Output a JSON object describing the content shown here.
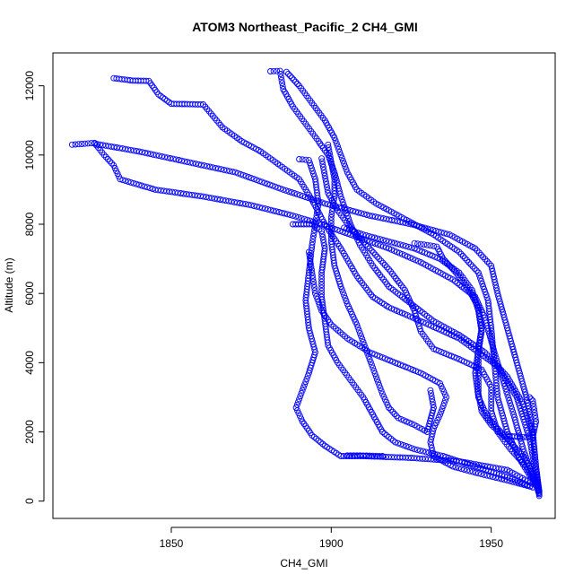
{
  "chart_data": {
    "type": "scatter",
    "title": "ATOM3 Northeast_Pacific_2 CH4_GMI",
    "xlabel": "CH4_GMI",
    "ylabel": "Altitude (m)",
    "xlim": [
      1813,
      1970
    ],
    "ylim": [
      -500,
      12950
    ],
    "xticks": [
      1850,
      1900,
      1950
    ],
    "yticks": [
      0,
      2000,
      4000,
      6000,
      8000,
      10000,
      12000
    ],
    "grid": false,
    "legend": "none",
    "marker": "open-circle",
    "color": "#0000ff",
    "series": [
      {
        "points": [
          [
            1832,
            12220
          ],
          [
            1838,
            12150
          ],
          [
            1843,
            12140
          ],
          [
            1846,
            11750
          ],
          [
            1850,
            11480
          ],
          [
            1855,
            11470
          ],
          [
            1860,
            11460
          ],
          [
            1866,
            10800
          ],
          [
            1872,
            10400
          ],
          [
            1878,
            10100
          ],
          [
            1884,
            9700
          ],
          [
            1890,
            9300
          ],
          [
            1894,
            8700
          ],
          [
            1898,
            8000
          ],
          [
            1903,
            7300
          ],
          [
            1908,
            6500
          ],
          [
            1913,
            5900
          ],
          [
            1918,
            5600
          ],
          [
            1928,
            5200
          ],
          [
            1940,
            4700
          ],
          [
            1952,
            3900
          ],
          [
            1958,
            3000
          ],
          [
            1962,
            1800
          ],
          [
            1964,
            800
          ],
          [
            1965,
            150
          ]
        ]
      },
      {
        "points": [
          [
            1819,
            10300
          ],
          [
            1822,
            10320
          ],
          [
            1826,
            10350
          ],
          [
            1829,
            10000
          ],
          [
            1832,
            9700
          ],
          [
            1834,
            9300
          ],
          [
            1845,
            9000
          ],
          [
            1860,
            8800
          ],
          [
            1875,
            8550
          ],
          [
            1888,
            8250
          ],
          [
            1897,
            8000
          ],
          [
            1906,
            7700
          ],
          [
            1918,
            7300
          ],
          [
            1928,
            6900
          ],
          [
            1938,
            6400
          ],
          [
            1945,
            5900
          ],
          [
            1948,
            5300
          ],
          [
            1951,
            4300
          ],
          [
            1954,
            3400
          ],
          [
            1957,
            2500
          ],
          [
            1960,
            1500
          ],
          [
            1963,
            700
          ],
          [
            1965,
            200
          ]
        ]
      },
      {
        "points": [
          [
            1826,
            10330
          ],
          [
            1840,
            10100
          ],
          [
            1855,
            9800
          ],
          [
            1870,
            9500
          ],
          [
            1885,
            9000
          ],
          [
            1898,
            8600
          ],
          [
            1912,
            8250
          ],
          [
            1925,
            8000
          ],
          [
            1937,
            7700
          ],
          [
            1945,
            7300
          ],
          [
            1950,
            6800
          ],
          [
            1952,
            6000
          ],
          [
            1955,
            5000
          ],
          [
            1958,
            4000
          ],
          [
            1961,
            3000
          ],
          [
            1963,
            2000
          ],
          [
            1964,
            1000
          ],
          [
            1965,
            300
          ]
        ]
      },
      {
        "points": [
          [
            1881,
            12420
          ],
          [
            1884,
            12430
          ],
          [
            1885,
            11900
          ],
          [
            1888,
            11400
          ],
          [
            1892,
            10900
          ],
          [
            1896,
            10400
          ],
          [
            1899,
            10000
          ],
          [
            1901,
            9500
          ],
          [
            1903,
            8800
          ],
          [
            1906,
            8000
          ],
          [
            1909,
            7400
          ],
          [
            1913,
            6800
          ],
          [
            1918,
            6200
          ],
          [
            1925,
            5700
          ],
          [
            1932,
            5200
          ],
          [
            1940,
            4800
          ],
          [
            1948,
            4300
          ],
          [
            1955,
            3600
          ],
          [
            1960,
            2800
          ],
          [
            1963,
            1900
          ],
          [
            1964,
            1000
          ],
          [
            1965,
            250
          ]
        ]
      },
      {
        "points": [
          [
            1886,
            12400
          ],
          [
            1890,
            12000
          ],
          [
            1894,
            11500
          ],
          [
            1898,
            11000
          ],
          [
            1901,
            10500
          ],
          [
            1903,
            10000
          ],
          [
            1905,
            9500
          ],
          [
            1908,
            9000
          ],
          [
            1914,
            8600
          ],
          [
            1922,
            8200
          ],
          [
            1932,
            7700
          ],
          [
            1940,
            7200
          ],
          [
            1946,
            6600
          ],
          [
            1949,
            5800
          ],
          [
            1950,
            5000
          ],
          [
            1951,
            4000
          ],
          [
            1952,
            3000
          ],
          [
            1955,
            2000
          ],
          [
            1959,
            1200
          ],
          [
            1963,
            600
          ]
        ]
      },
      {
        "points": [
          [
            1890,
            9880
          ],
          [
            1893,
            9850
          ],
          [
            1895,
            9300
          ],
          [
            1896,
            8600
          ],
          [
            1895,
            8000
          ],
          [
            1894,
            7400
          ],
          [
            1893,
            6600
          ],
          [
            1892,
            5800
          ],
          [
            1893,
            5000
          ],
          [
            1895,
            4300
          ],
          [
            1893,
            3700
          ],
          [
            1891,
            3200
          ],
          [
            1889,
            2700
          ],
          [
            1891,
            2300
          ],
          [
            1894,
            1900
          ],
          [
            1898,
            1600
          ],
          [
            1903,
            1300
          ],
          [
            1910,
            1300
          ],
          [
            1925,
            1250
          ],
          [
            1940,
            1150
          ],
          [
            1955,
            900
          ],
          [
            1963,
            500
          ]
        ]
      },
      {
        "points": [
          [
            1888,
            8000
          ],
          [
            1894,
            8000
          ],
          [
            1897,
            7800
          ],
          [
            1898,
            7300
          ],
          [
            1897,
            6600
          ],
          [
            1897,
            5900
          ],
          [
            1898,
            5200
          ],
          [
            1899,
            4500
          ],
          [
            1902,
            4000
          ],
          [
            1906,
            3500
          ],
          [
            1910,
            3000
          ],
          [
            1913,
            2500
          ],
          [
            1916,
            2000
          ],
          [
            1920,
            1700
          ],
          [
            1926,
            1500
          ],
          [
            1935,
            1300
          ],
          [
            1945,
            1000
          ],
          [
            1955,
            700
          ],
          [
            1963,
            400
          ]
        ]
      },
      {
        "points": [
          [
            1899,
            10300
          ],
          [
            1900,
            9800
          ],
          [
            1901,
            9300
          ],
          [
            1901,
            8800
          ],
          [
            1900,
            8200
          ],
          [
            1900,
            7500
          ],
          [
            1901,
            6800
          ],
          [
            1903,
            6200
          ],
          [
            1905,
            5700
          ],
          [
            1908,
            5100
          ],
          [
            1910,
            4600
          ],
          [
            1912,
            4100
          ],
          [
            1914,
            3600
          ],
          [
            1916,
            3100
          ],
          [
            1918,
            2700
          ],
          [
            1921,
            2400
          ],
          [
            1926,
            2200
          ],
          [
            1930,
            2000
          ],
          [
            1932,
            2700
          ],
          [
            1931,
            3200
          ]
        ]
      },
      {
        "points": [
          [
            1897,
            9900
          ],
          [
            1898,
            9400
          ],
          [
            1899,
            8900
          ],
          [
            1902,
            8400
          ],
          [
            1906,
            7900
          ],
          [
            1912,
            7300
          ],
          [
            1918,
            6700
          ],
          [
            1923,
            6100
          ],
          [
            1926,
            5500
          ],
          [
            1928,
            4900
          ],
          [
            1932,
            4400
          ],
          [
            1940,
            4100
          ],
          [
            1947,
            3800
          ],
          [
            1950,
            3300
          ],
          [
            1950,
            2600
          ],
          [
            1952,
            2000
          ],
          [
            1956,
            1500
          ],
          [
            1961,
            1000
          ],
          [
            1964,
            500
          ]
        ]
      },
      {
        "points": [
          [
            1926,
            7450
          ],
          [
            1930,
            7400
          ],
          [
            1933,
            7350
          ],
          [
            1935,
            7000
          ],
          [
            1939,
            6600
          ],
          [
            1943,
            6100
          ],
          [
            1946,
            5600
          ],
          [
            1947,
            5000
          ],
          [
            1946,
            4400
          ],
          [
            1945,
            3700
          ],
          [
            1946,
            3000
          ],
          [
            1949,
            2400
          ],
          [
            1954,
            1900
          ],
          [
            1959,
            1850
          ],
          [
            1963,
            1850
          ],
          [
            1964,
            2300
          ],
          [
            1963,
            2900
          ],
          [
            1962,
            3000
          ]
        ]
      },
      {
        "points": [
          [
            1904,
            7900
          ],
          [
            1910,
            7700
          ],
          [
            1918,
            7500
          ],
          [
            1926,
            7300
          ],
          [
            1934,
            7000
          ],
          [
            1940,
            6600
          ],
          [
            1944,
            6100
          ],
          [
            1946,
            5500
          ],
          [
            1947,
            4900
          ],
          [
            1946,
            4300
          ],
          [
            1946,
            3700
          ],
          [
            1946,
            3100
          ],
          [
            1947,
            2600
          ],
          [
            1950,
            2200
          ],
          [
            1955,
            1800
          ],
          [
            1960,
            1300
          ],
          [
            1963,
            800
          ],
          [
            1965,
            300
          ]
        ]
      },
      {
        "points": [
          [
            1893,
            7200
          ],
          [
            1894,
            6600
          ],
          [
            1895,
            6000
          ],
          [
            1897,
            5500
          ],
          [
            1900,
            5100
          ],
          [
            1905,
            4700
          ],
          [
            1912,
            4300
          ],
          [
            1920,
            4000
          ],
          [
            1928,
            3700
          ],
          [
            1934,
            3400
          ],
          [
            1936,
            3000
          ],
          [
            1934,
            2500
          ],
          [
            1932,
            2100
          ],
          [
            1931,
            1700
          ],
          [
            1932,
            1300
          ],
          [
            1938,
            1000
          ],
          [
            1946,
            800
          ],
          [
            1955,
            600
          ],
          [
            1963,
            400
          ]
        ]
      },
      {
        "points": [
          [
            1905,
            1320
          ],
          [
            1909,
            1320
          ],
          [
            1913,
            1310
          ],
          [
            1916,
            1300
          ]
        ]
      }
    ]
  }
}
